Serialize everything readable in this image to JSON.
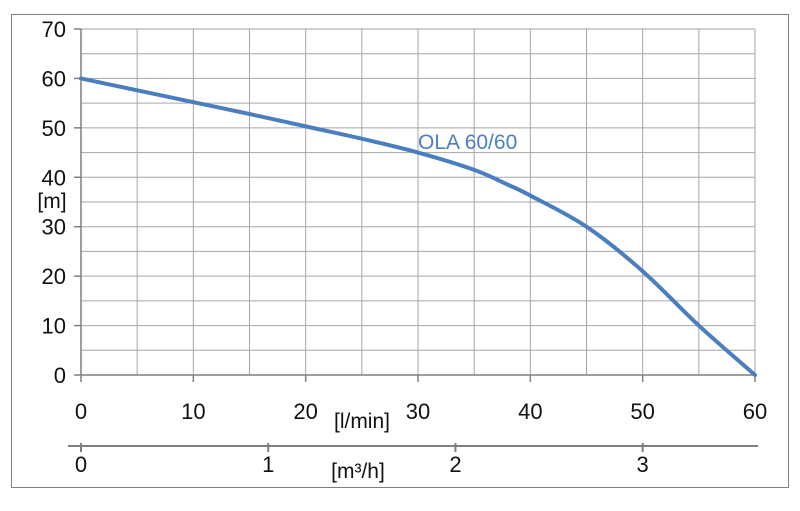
{
  "chart_data": {
    "type": "line",
    "y_unit_label": "[m]",
    "x_unit_label": "[l/min]",
    "secondary_x_unit_label": "[m³/h]",
    "ylim": [
      0,
      70
    ],
    "xlim": [
      0,
      60
    ],
    "y_ticks": [
      "0",
      "10",
      "20",
      "30",
      "40",
      "50",
      "60",
      "70"
    ],
    "x_ticks": [
      "0",
      "10",
      "20",
      "30",
      "40",
      "50",
      "60"
    ],
    "secondary_x_ticks": [
      "0",
      "1",
      "2",
      "3"
    ],
    "secondary_x_tick_values": [
      0,
      1,
      2,
      3
    ],
    "grid": true,
    "series": [
      {
        "name": "OLA 60/60",
        "color": "#4a7ebf",
        "x": [
          0,
          5,
          10,
          15,
          20,
          25,
          30,
          35,
          38,
          40,
          45,
          50,
          55,
          60
        ],
        "y": [
          60,
          57.6,
          55.2,
          52.8,
          50.3,
          47.8,
          45,
          41.5,
          38.5,
          36.3,
          30,
          21,
          10,
          0
        ]
      }
    ]
  }
}
